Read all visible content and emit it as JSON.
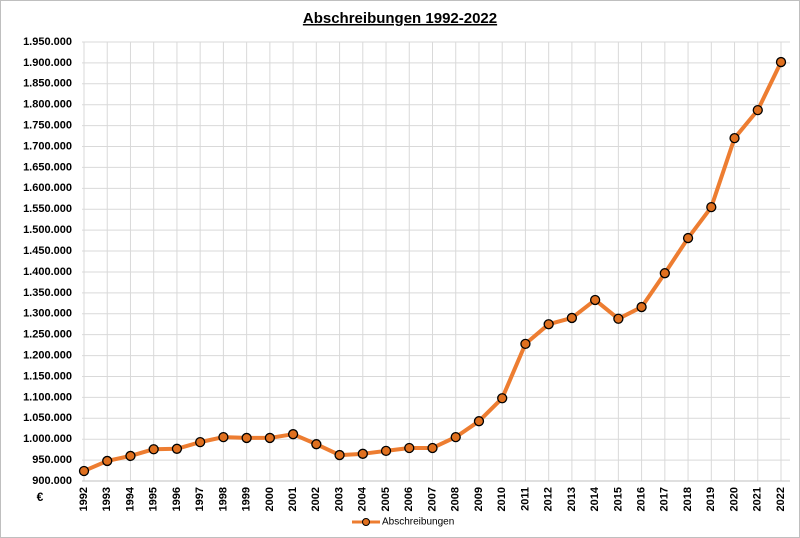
{
  "chart_data": {
    "type": "line",
    "title": "Abschreibungen 1992-2022",
    "y_label": "€",
    "categories": [
      "1992",
      "1993",
      "1994",
      "1995",
      "1996",
      "1997",
      "1998",
      "1999",
      "2000",
      "2001",
      "2002",
      "2003",
      "2004",
      "2005",
      "2006",
      "2007",
      "2008",
      "2009",
      "2010",
      "2011",
      "2012",
      "2013",
      "2014",
      "2015",
      "2016",
      "2017",
      "2018",
      "2019",
      "2020",
      "2021",
      "2022"
    ],
    "series": [
      {
        "name": "Abschreibungen",
        "color": "#ED7D31",
        "marker_color": "#E0701F",
        "values": [
          924000,
          948000,
          960000,
          976000,
          977000,
          993000,
          1005000,
          1003000,
          1003000,
          1012000,
          988000,
          962000,
          965000,
          972000,
          979000,
          979000,
          1005000,
          1043000,
          1098000,
          1228000,
          1275000,
          1290000,
          1333000,
          1288000,
          1316000,
          1397000,
          1481000,
          1555000,
          1720000,
          1787000,
          1902000
        ]
      }
    ],
    "ylim": [
      900000,
      1950000
    ],
    "yticks": [
      {
        "value": 900000,
        "label": "900.000"
      },
      {
        "value": 950000,
        "label": "950.000"
      },
      {
        "value": 1000000,
        "label": "1.000.000"
      },
      {
        "value": 1050000,
        "label": "1.050.000"
      },
      {
        "value": 1100000,
        "label": "1.100.000"
      },
      {
        "value": 1150000,
        "label": "1.150.000"
      },
      {
        "value": 1200000,
        "label": "1.200.000"
      },
      {
        "value": 1250000,
        "label": "1.250.000"
      },
      {
        "value": 1300000,
        "label": "1.300.000"
      },
      {
        "value": 1350000,
        "label": "1.350.000"
      },
      {
        "value": 1400000,
        "label": "1.400.000"
      },
      {
        "value": 1450000,
        "label": "1.450.000"
      },
      {
        "value": 1500000,
        "label": "1.500.000"
      },
      {
        "value": 1550000,
        "label": "1.550.000"
      },
      {
        "value": 1600000,
        "label": "1.600.000"
      },
      {
        "value": 1650000,
        "label": "1.650.000"
      },
      {
        "value": 1700000,
        "label": "1.700.000"
      },
      {
        "value": 1750000,
        "label": "1.750.000"
      },
      {
        "value": 1800000,
        "label": "1.800.000"
      },
      {
        "value": 1850000,
        "label": "1.850.000"
      },
      {
        "value": 1900000,
        "label": "1.900.000"
      },
      {
        "value": 1950000,
        "label": "1.950.000"
      }
    ],
    "grid": true,
    "legend": "bottom"
  }
}
